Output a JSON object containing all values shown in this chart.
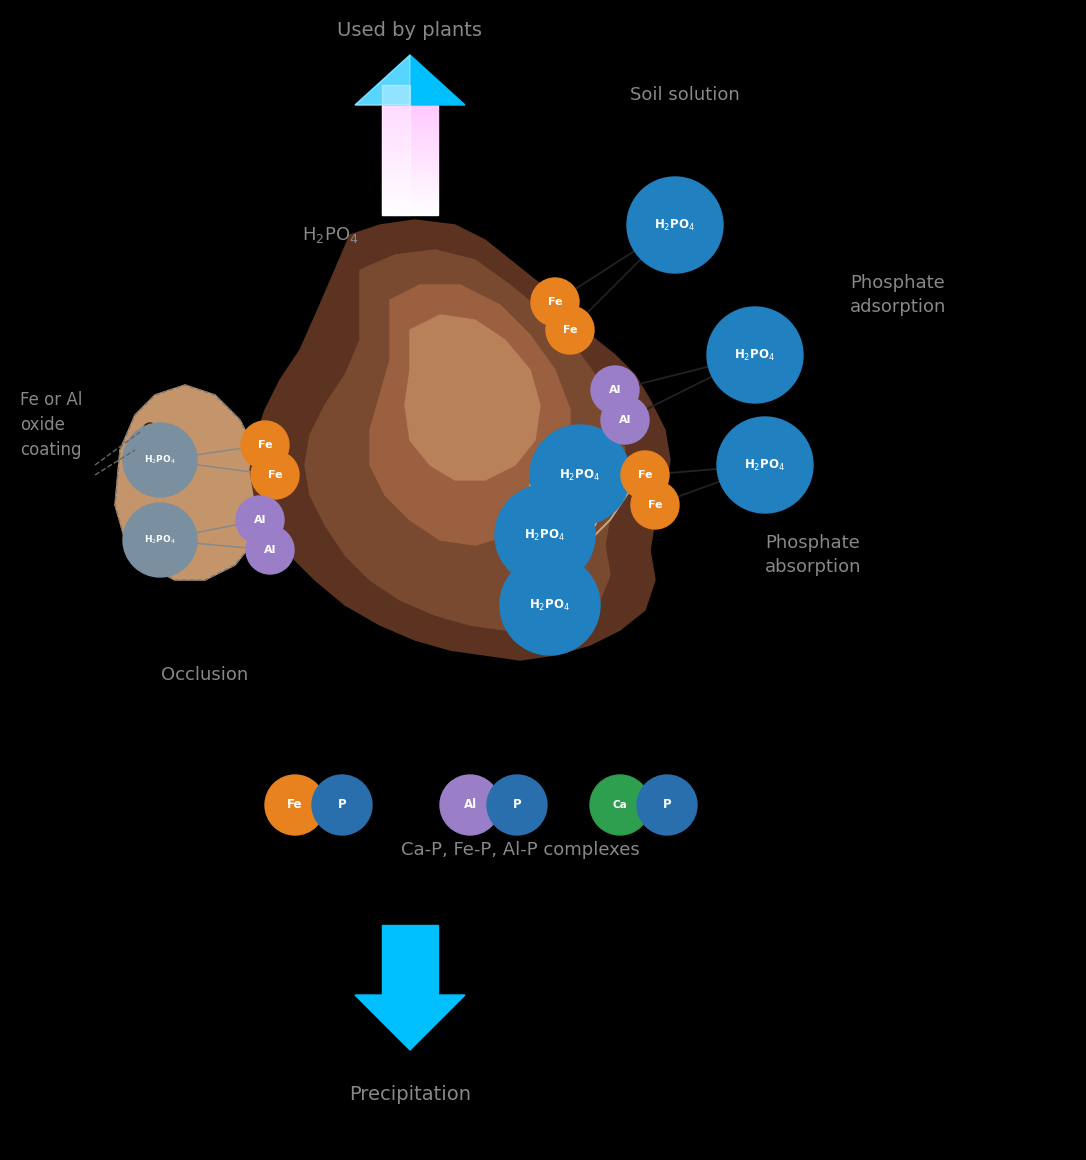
{
  "background_color": "#000000",
  "soil_color_dark": "#5C3320",
  "soil_color_mid": "#7A4A30",
  "soil_color_center": "#9B6040",
  "soil_color_light": "#B8815A",
  "occlusion_color": "#C4956A",
  "fe_color": "#E8821E",
  "al_color": "#9B7EC8",
  "h2po4_blue_color": "#2080C0",
  "h2po4_gray_color": "#7A8FA0",
  "ca_color": "#2E9E4F",
  "p_color": "#2A6FAD",
  "crack_color": "#C8A882",
  "line_dark": "#222222",
  "line_occ": "#888888",
  "text_color": "#888888",
  "arrow_color": "#00BFFF",
  "labels": {
    "used_by_plants": "Used by plants",
    "soil_solution": "Soil solution",
    "h2po4_main": "H₂PO₄",
    "phosphate_adsorption": "Phosphate\nadsorption",
    "phosphate_absorption": "Phosphate\nabsorption",
    "fe_al_oxide": "Fe or Al\noxide\ncoating",
    "occlusion": "Occlusion",
    "complexes": "Ca-P, Fe-P, Al-P complexes",
    "precipitation": "Precipitation"
  },
  "figsize": [
    10.86,
    11.6
  ],
  "dpi": 100,
  "xlim": [
    0,
    10.86
  ],
  "ylim": [
    0,
    11.6
  ]
}
